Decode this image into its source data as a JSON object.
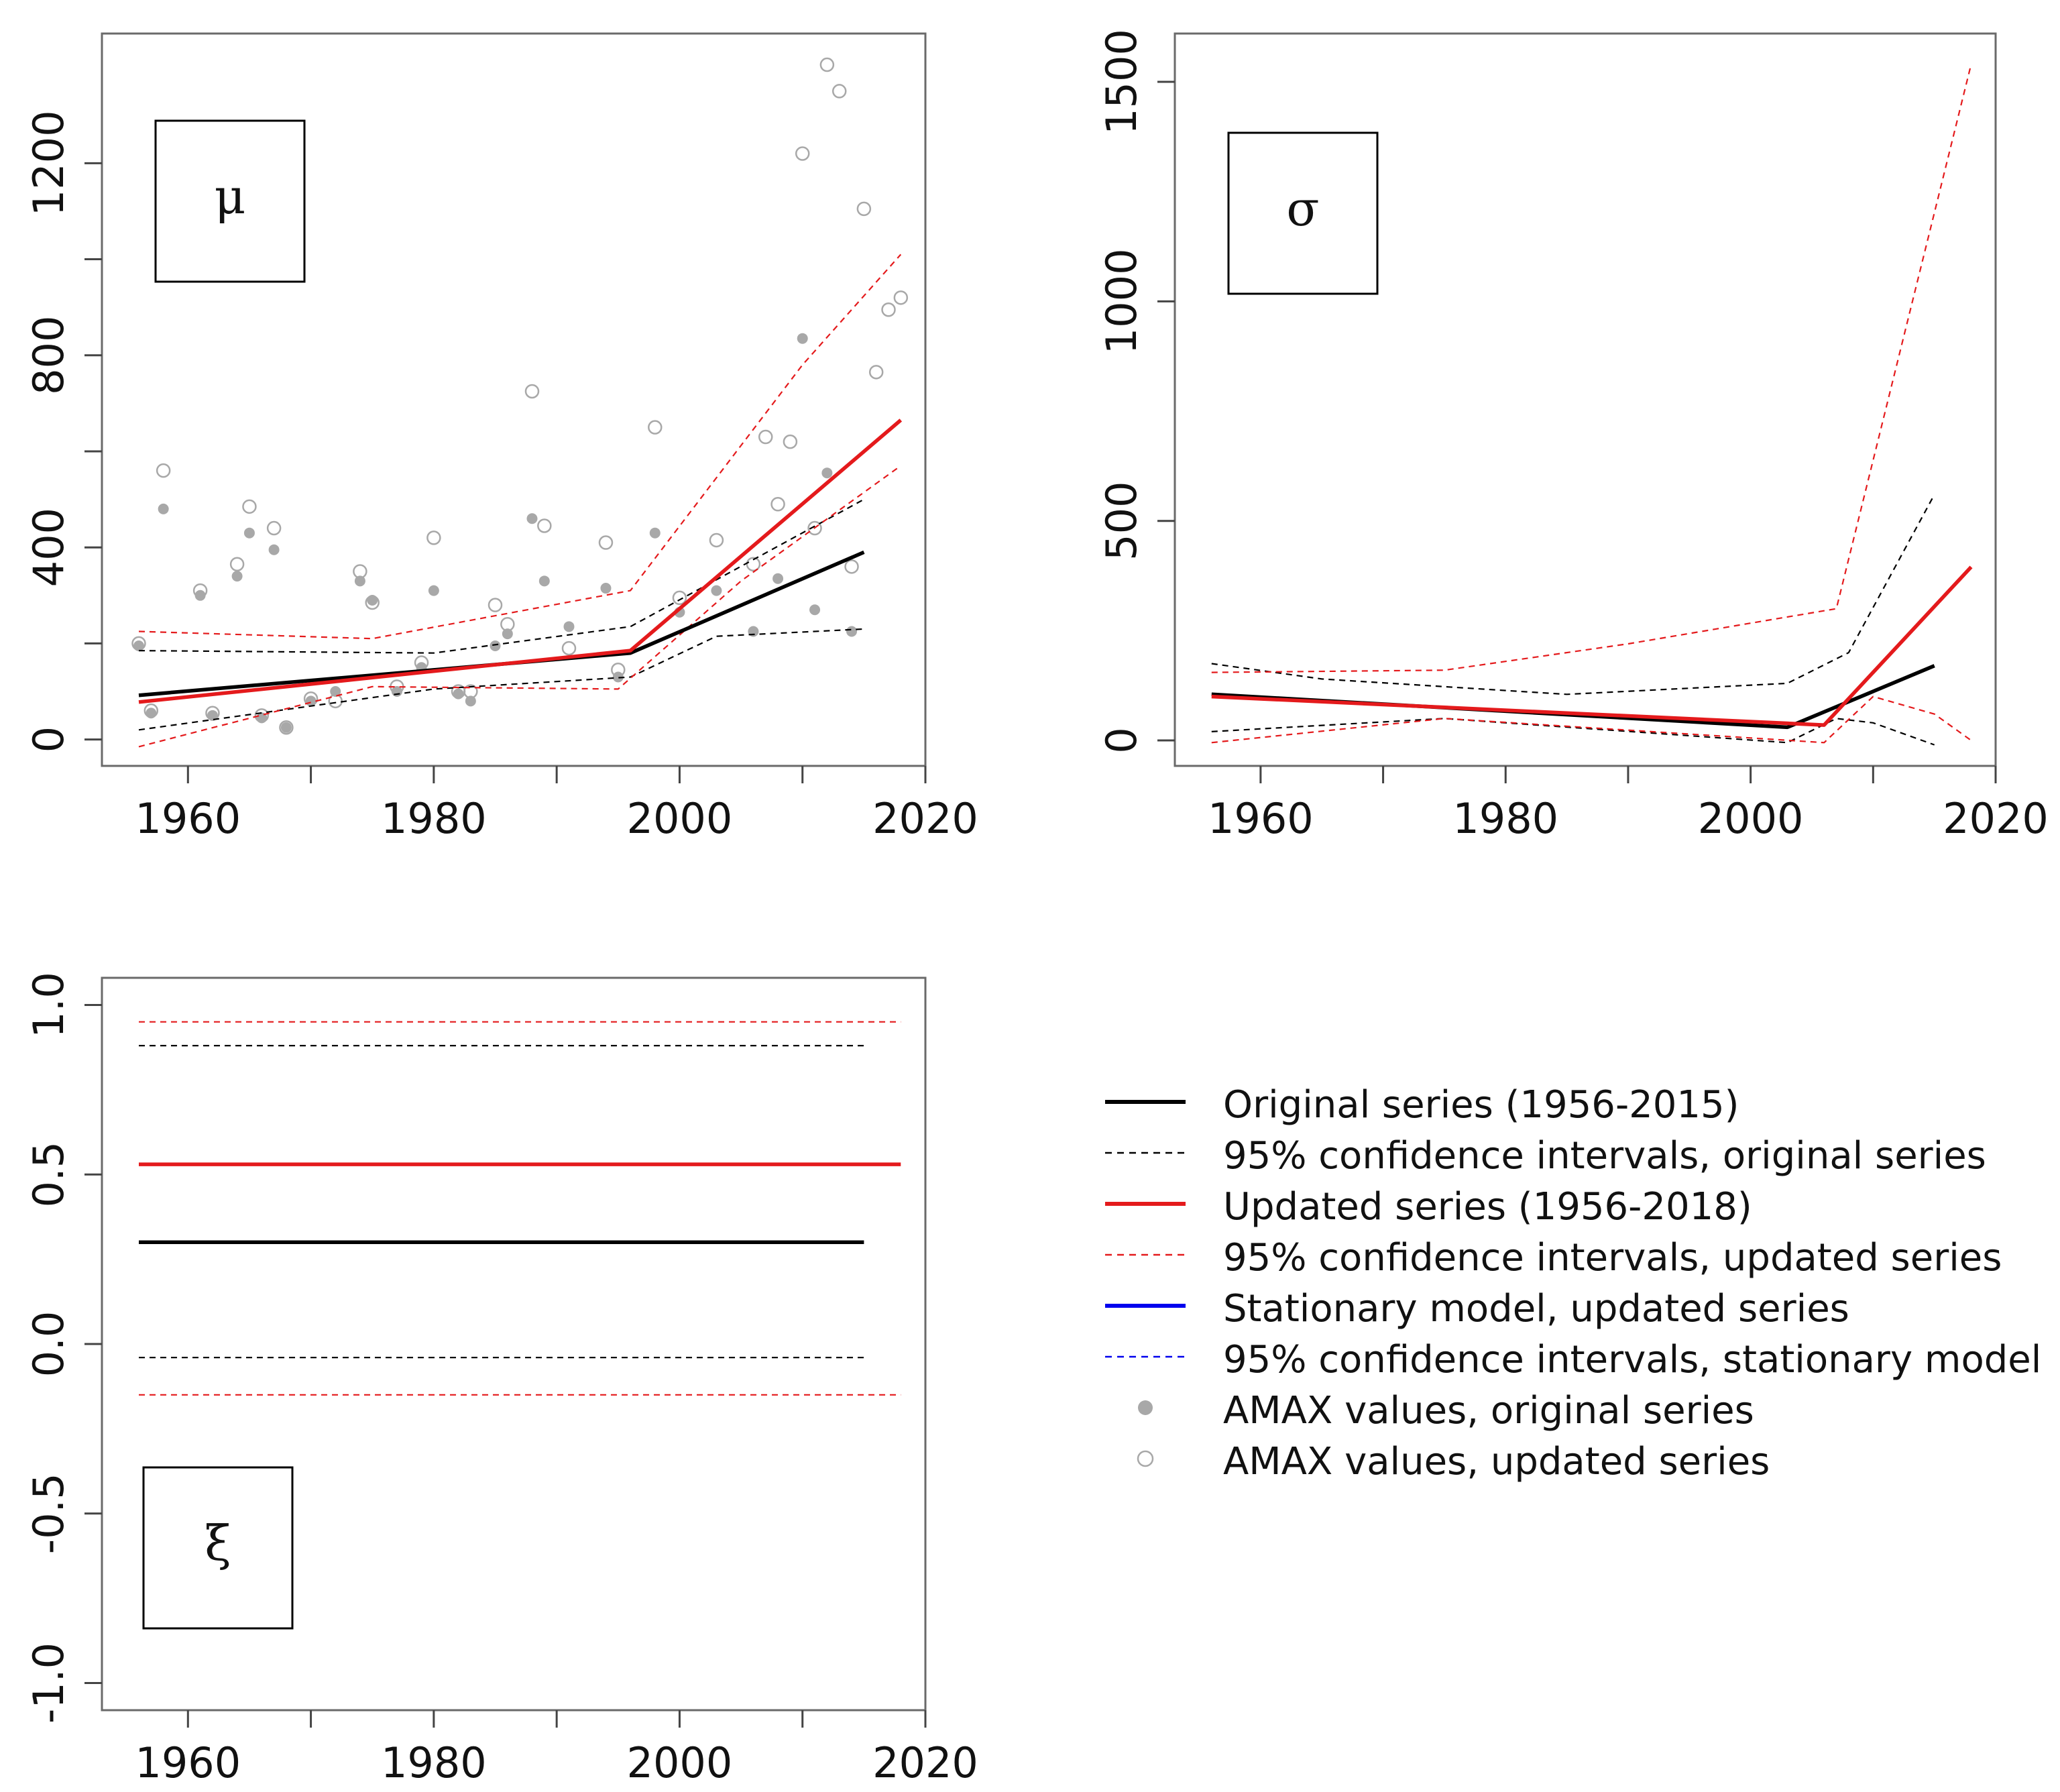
{
  "colors": {
    "original": "#000000",
    "updated": "#e41a1c",
    "stationary": "#0000ee",
    "amax_original": "#a8a8a8",
    "amax_updated": "#a8a8a8"
  },
  "legend": {
    "items": [
      {
        "label": "Original series (1956-2015)",
        "kind": "line",
        "color": "original",
        "dashed": false
      },
      {
        "label": "95% confidence intervals, original series",
        "kind": "line",
        "color": "original",
        "dashed": true
      },
      {
        "label": "Updated series (1956-2018)",
        "kind": "line",
        "color": "updated",
        "dashed": false
      },
      {
        "label": "95% confidence intervals, updated series",
        "kind": "line",
        "color": "updated",
        "dashed": true
      },
      {
        "label": "Stationary model, updated series",
        "kind": "line",
        "color": "stationary",
        "dashed": false
      },
      {
        "label": "95% confidence intervals, stationary model",
        "kind": "line",
        "color": "stationary",
        "dashed": true
      },
      {
        "label": "AMAX values, original series",
        "kind": "filled-dot",
        "color": "amax_original",
        "dashed": false
      },
      {
        "label": "AMAX values, updated series",
        "kind": "open-dot",
        "color": "amax_updated",
        "dashed": false
      }
    ]
  },
  "chart_data": [
    {
      "id": "mu",
      "type": "line",
      "title": "μ",
      "xlabel": "",
      "ylabel": "",
      "xlim": [
        1953,
        2020
      ],
      "ylim": [
        -55,
        1470
      ],
      "xticks": [
        1960,
        1970,
        1980,
        1990,
        2000,
        2010,
        2020
      ],
      "xtick_labels": [
        "1960",
        "",
        "1980",
        "",
        "2000",
        "",
        "2020"
      ],
      "yticks": [
        0,
        200,
        400,
        600,
        800,
        1000,
        1200
      ],
      "ytick_labels": [
        "0",
        "",
        "400",
        "",
        "800",
        "",
        "1200"
      ],
      "grid": false,
      "series": [
        {
          "name": "Original series (1956-2015)",
          "color": "original",
          "style": "solid",
          "x": [
            1956,
            1996,
            2015
          ],
          "y": [
            92,
            180,
            390
          ]
        },
        {
          "name": "95% CI original upper",
          "color": "original",
          "style": "dashed",
          "x": [
            1956,
            1980,
            1996,
            2015
          ],
          "y": [
            185,
            180,
            235,
            500
          ]
        },
        {
          "name": "95% CI original lower",
          "color": "original",
          "style": "dashed",
          "x": [
            1956,
            1980,
            1996,
            2003,
            2015
          ],
          "y": [
            20,
            105,
            130,
            215,
            230
          ]
        },
        {
          "name": "Updated series (1956-2018)",
          "color": "updated",
          "style": "solid",
          "x": [
            1956,
            1996,
            2018
          ],
          "y": [
            78,
            185,
            665
          ]
        },
        {
          "name": "95% CI updated upper",
          "color": "updated",
          "style": "dashed",
          "x": [
            1956,
            1975,
            1996,
            2010,
            2018
          ],
          "y": [
            225,
            210,
            310,
            780,
            1010
          ]
        },
        {
          "name": "95% CI updated lower",
          "color": "updated",
          "style": "dashed",
          "x": [
            1956,
            1975,
            1995,
            2005,
            2018
          ],
          "y": [
            -15,
            110,
            105,
            330,
            570
          ]
        }
      ],
      "points_original": {
        "x": [
          1956,
          1957,
          1958,
          1961,
          1962,
          1964,
          1965,
          1966,
          1967,
          1968,
          1970,
          1972,
          1974,
          1975,
          1977,
          1979,
          1980,
          1982,
          1983,
          1985,
          1986,
          1988,
          1989,
          1991,
          1994,
          1995,
          1998,
          2000,
          2003,
          2006,
          2008,
          2010,
          2011,
          2012,
          2014
        ],
        "y": [
          195,
          55,
          480,
          300,
          50,
          340,
          430,
          45,
          395,
          25,
          80,
          100,
          330,
          290,
          100,
          150,
          310,
          95,
          80,
          195,
          220,
          460,
          330,
          235,
          315,
          130,
          430,
          265,
          310,
          225,
          335,
          835,
          270,
          555,
          225
        ]
      },
      "points_updated": {
        "x": [
          1956,
          1957,
          1958,
          1961,
          1962,
          1964,
          1965,
          1966,
          1967,
          1968,
          1970,
          1972,
          1974,
          1975,
          1977,
          1979,
          1980,
          1982,
          1983,
          1985,
          1986,
          1988,
          1989,
          1991,
          1994,
          1995,
          1998,
          2000,
          2003,
          2006,
          2007,
          2008,
          2009,
          2010,
          2011,
          2012,
          2013,
          2014,
          2015,
          2016,
          2017,
          2018
        ],
        "y": [
          200,
          60,
          560,
          310,
          55,
          365,
          485,
          50,
          440,
          25,
          85,
          80,
          350,
          285,
          110,
          160,
          420,
          100,
          100,
          280,
          240,
          725,
          445,
          190,
          410,
          145,
          650,
          295,
          415,
          365,
          630,
          490,
          620,
          1220,
          440,
          1405,
          1350,
          360,
          1105,
          765,
          895,
          920
        ]
      }
    },
    {
      "id": "sigma",
      "type": "line",
      "title": "σ",
      "xlabel": "",
      "ylabel": "",
      "xlim": [
        1953,
        2020
      ],
      "ylim": [
        -58,
        1610
      ],
      "xticks": [
        1960,
        1970,
        1980,
        1990,
        2000,
        2010,
        2020
      ],
      "xtick_labels": [
        "1960",
        "",
        "1980",
        "",
        "2000",
        "",
        "2020"
      ],
      "yticks": [
        0,
        500,
        1000,
        1500
      ],
      "ytick_labels": [
        "0",
        "500",
        "1000",
        "1500"
      ],
      "grid": false,
      "series": [
        {
          "name": "Original series (1956-2015)",
          "color": "original",
          "style": "solid",
          "x": [
            1956,
            2003,
            2015
          ],
          "y": [
            105,
            30,
            170
          ]
        },
        {
          "name": "95% CI original upper",
          "color": "original",
          "style": "dashed",
          "x": [
            1956,
            1965,
            1985,
            2003,
            2008,
            2015
          ],
          "y": [
            175,
            140,
            105,
            130,
            200,
            560
          ]
        },
        {
          "name": "95% CI original lower",
          "color": "original",
          "style": "dashed",
          "x": [
            1956,
            1975,
            2003,
            2007,
            2010,
            2015
          ],
          "y": [
            20,
            50,
            -5,
            50,
            40,
            -10
          ]
        },
        {
          "name": "Updated series (1956-2018)",
          "color": "updated",
          "style": "solid",
          "x": [
            1956,
            2006,
            2018
          ],
          "y": [
            100,
            35,
            395
          ]
        },
        {
          "name": "95% CI updated upper",
          "color": "updated",
          "style": "dashed",
          "x": [
            1956,
            1975,
            1990,
            2007,
            2018
          ],
          "y": [
            155,
            160,
            220,
            300,
            1540
          ]
        },
        {
          "name": "95% CI updated lower",
          "color": "updated",
          "style": "dashed",
          "x": [
            1956,
            1975,
            2006,
            2010,
            2015,
            2018
          ],
          "y": [
            -5,
            50,
            -5,
            100,
            60,
            0
          ]
        }
      ]
    },
    {
      "id": "xi",
      "type": "line",
      "title": "ξ",
      "xlabel": "",
      "ylabel": "",
      "xlim": [
        1953,
        2020
      ],
      "ylim": [
        -1.08,
        1.08
      ],
      "xticks": [
        1960,
        1970,
        1980,
        1990,
        2000,
        2010,
        2020
      ],
      "xtick_labels": [
        "1960",
        "",
        "1980",
        "",
        "2000",
        "",
        "2020"
      ],
      "yticks": [
        -1.0,
        -0.5,
        0.0,
        0.5,
        1.0
      ],
      "ytick_labels": [
        "-1.0",
        "-0.5",
        "0.0",
        "0.5",
        "1.0"
      ],
      "grid": false,
      "series": [
        {
          "name": "Original series (1956-2015)",
          "color": "original",
          "style": "solid",
          "x": [
            1956,
            2015
          ],
          "y": [
            0.3,
            0.3
          ]
        },
        {
          "name": "95% CI original upper",
          "color": "original",
          "style": "dashed",
          "x": [
            1956,
            2015
          ],
          "y": [
            0.88,
            0.88
          ]
        },
        {
          "name": "95% CI original lower",
          "color": "original",
          "style": "dashed",
          "x": [
            1956,
            2015
          ],
          "y": [
            -0.04,
            -0.04
          ]
        },
        {
          "name": "Updated series (1956-2018)",
          "color": "updated",
          "style": "solid",
          "x": [
            1956,
            2018
          ],
          "y": [
            0.53,
            0.53
          ]
        },
        {
          "name": "95% CI updated upper",
          "color": "updated",
          "style": "dashed",
          "x": [
            1956,
            2018
          ],
          "y": [
            0.95,
            0.95
          ]
        },
        {
          "name": "95% CI updated lower",
          "color": "updated",
          "style": "dashed",
          "x": [
            1956,
            2018
          ],
          "y": [
            -0.15,
            -0.15
          ]
        }
      ]
    }
  ]
}
